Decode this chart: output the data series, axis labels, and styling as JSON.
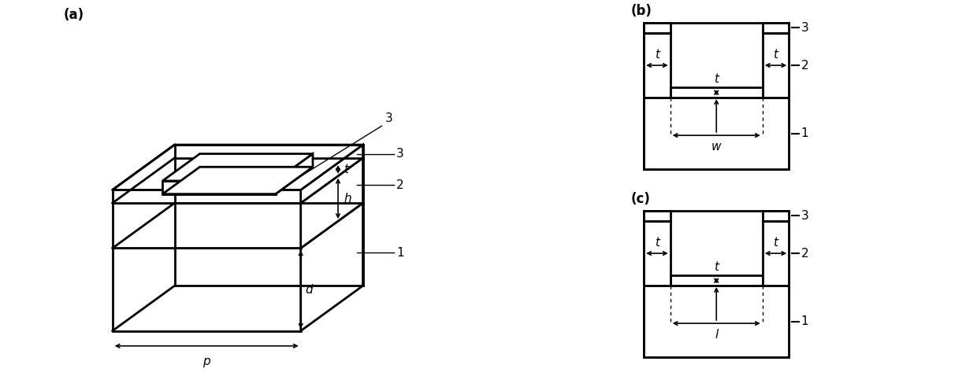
{
  "fig_width": 12.4,
  "fig_height": 4.78,
  "dpi": 100,
  "bg_color": "#ffffff",
  "line_color": "#000000",
  "lw": 1.8,
  "lw_thick": 2.0,
  "panel_a_label": "(a)",
  "panel_b_label": "(b)",
  "panel_c_label": "(c)",
  "labels_1": "1",
  "labels_2": "2",
  "labels_3": "3",
  "label_t": "t",
  "label_h": "h",
  "label_p": "p",
  "label_d": "d",
  "label_w": "w",
  "label_l": "l"
}
